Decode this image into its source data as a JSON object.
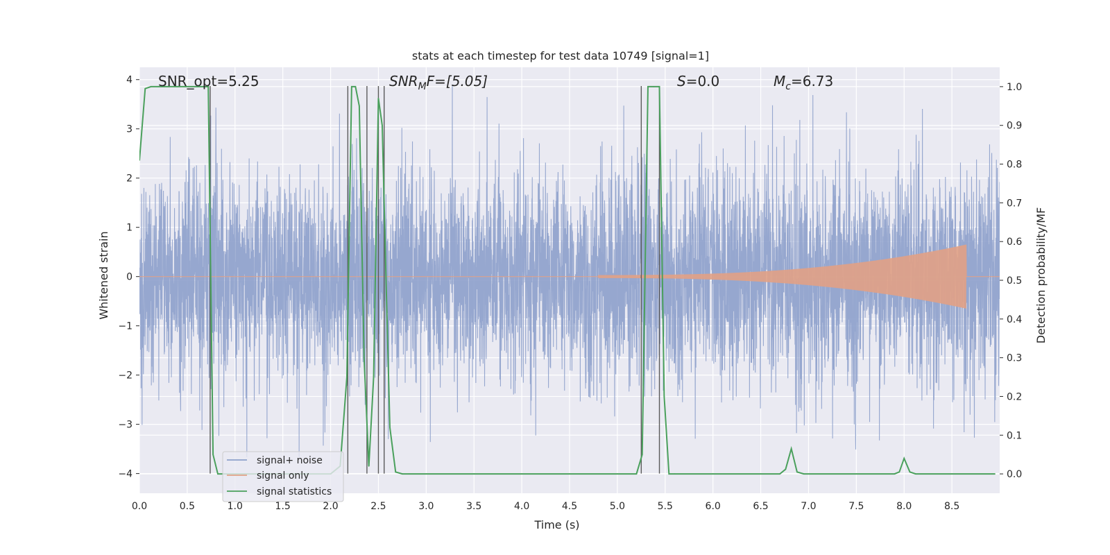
{
  "chart_data": {
    "type": "line",
    "title": "stats at each timestep for test data 10749 [signal=1]",
    "xlabel": "Time (s)",
    "ylabel_left": "Whitened strain",
    "ylabel_right": "Detection probability/MF",
    "xlim": [
      0.0,
      9.0
    ],
    "ylim_left": [
      -4.4,
      4.25
    ],
    "ylim_right": [
      -0.05,
      1.05
    ],
    "grid": true,
    "legend_position": "lower-left",
    "x_ticks": [
      "0.0",
      "0.5",
      "1.0",
      "1.5",
      "2.0",
      "2.5",
      "3.0",
      "3.5",
      "4.0",
      "4.5",
      "5.0",
      "5.5",
      "6.0",
      "6.5",
      "7.0",
      "7.5",
      "8.0",
      "8.5"
    ],
    "x_tick_values": [
      0.0,
      0.5,
      1.0,
      1.5,
      2.0,
      2.5,
      3.0,
      3.5,
      4.0,
      4.5,
      5.0,
      5.5,
      6.0,
      6.5,
      7.0,
      7.5,
      8.0,
      8.5
    ],
    "left_ticks": [
      "4",
      "3",
      "2",
      "1",
      "0",
      "−1",
      "−2",
      "−3",
      "−4"
    ],
    "left_tick_values": [
      4,
      3,
      2,
      1,
      0,
      -1,
      -2,
      -3,
      -4
    ],
    "right_ticks": [
      "1.0",
      "0.9",
      "0.8",
      "0.7",
      "0.6",
      "0.5",
      "0.4",
      "0.3",
      "0.2",
      "0.1",
      "0.0"
    ],
    "right_tick_values": [
      1.0,
      0.9,
      0.8,
      0.7,
      0.6,
      0.5,
      0.4,
      0.3,
      0.2,
      0.1,
      0.0
    ],
    "annotations": {
      "snr_opt": "SNR_opt=5.25",
      "snr_mf_main": "SNR",
      "snr_mf_sub": "M",
      "snr_mf_rest": "F=[5.05]",
      "s_main": "S",
      "s_rest": "=0.0",
      "mc_main": "M",
      "mc_sub": "c",
      "mc_rest": "=6.73"
    },
    "series": [
      {
        "name": "signal+ noise",
        "color": "#8da0cb",
        "style": "dense noise, amplitude ~N(0,1), peaks to about ±3.9",
        "sample_rate_hz": 2048,
        "duration_s": 9.0
      },
      {
        "name": "signal only",
        "color": "#e1a185",
        "chirp": {
          "start_s": 4.8,
          "end_s": 8.65,
          "start_amplitude": 0.03,
          "end_amplitude": 0.65
        }
      },
      {
        "name": "signal statistics",
        "color": "#4aa05c",
        "axis": "right",
        "x": [
          0.0,
          0.06,
          0.12,
          0.2,
          0.4,
          0.6,
          0.72,
          0.77,
          0.82,
          0.88,
          0.95,
          1.1,
          1.5,
          2.0,
          2.1,
          2.17,
          2.22,
          2.26,
          2.3,
          2.35,
          2.4,
          2.45,
          2.5,
          2.54,
          2.58,
          2.62,
          2.68,
          2.75,
          2.82,
          3.0,
          3.5,
          4.0,
          4.5,
          5.0,
          5.2,
          5.26,
          5.32,
          5.38,
          5.44,
          5.49,
          5.54,
          5.6,
          6.0,
          6.5,
          6.7,
          6.76,
          6.82,
          6.88,
          6.95,
          7.5,
          7.9,
          7.95,
          8.0,
          8.06,
          8.12,
          8.5,
          8.95
        ],
        "y": [
          0.81,
          0.995,
          1.0,
          1.0,
          1.0,
          1.0,
          1.0,
          0.05,
          0.0,
          0.0,
          0.0,
          0.0,
          0.0,
          0.0,
          0.02,
          0.25,
          1.0,
          1.0,
          0.95,
          0.3,
          0.02,
          0.25,
          0.97,
          0.9,
          0.5,
          0.12,
          0.005,
          0.0,
          0.0,
          0.0,
          0.0,
          0.0,
          0.0,
          0.0,
          0.0,
          0.05,
          1.0,
          1.0,
          1.0,
          0.2,
          0.0,
          0.0,
          0.0,
          0.0,
          0.0,
          0.012,
          0.065,
          0.005,
          0.0,
          0.0,
          0.0,
          0.005,
          0.04,
          0.005,
          0.0,
          0.0,
          0.0
        ]
      }
    ],
    "vertical_lines": {
      "color": "#5a5a5a",
      "y_from": -4.0,
      "y_to": 3.87,
      "x": [
        0.74,
        2.18,
        2.38,
        2.5,
        2.56,
        5.25,
        5.44
      ]
    }
  }
}
